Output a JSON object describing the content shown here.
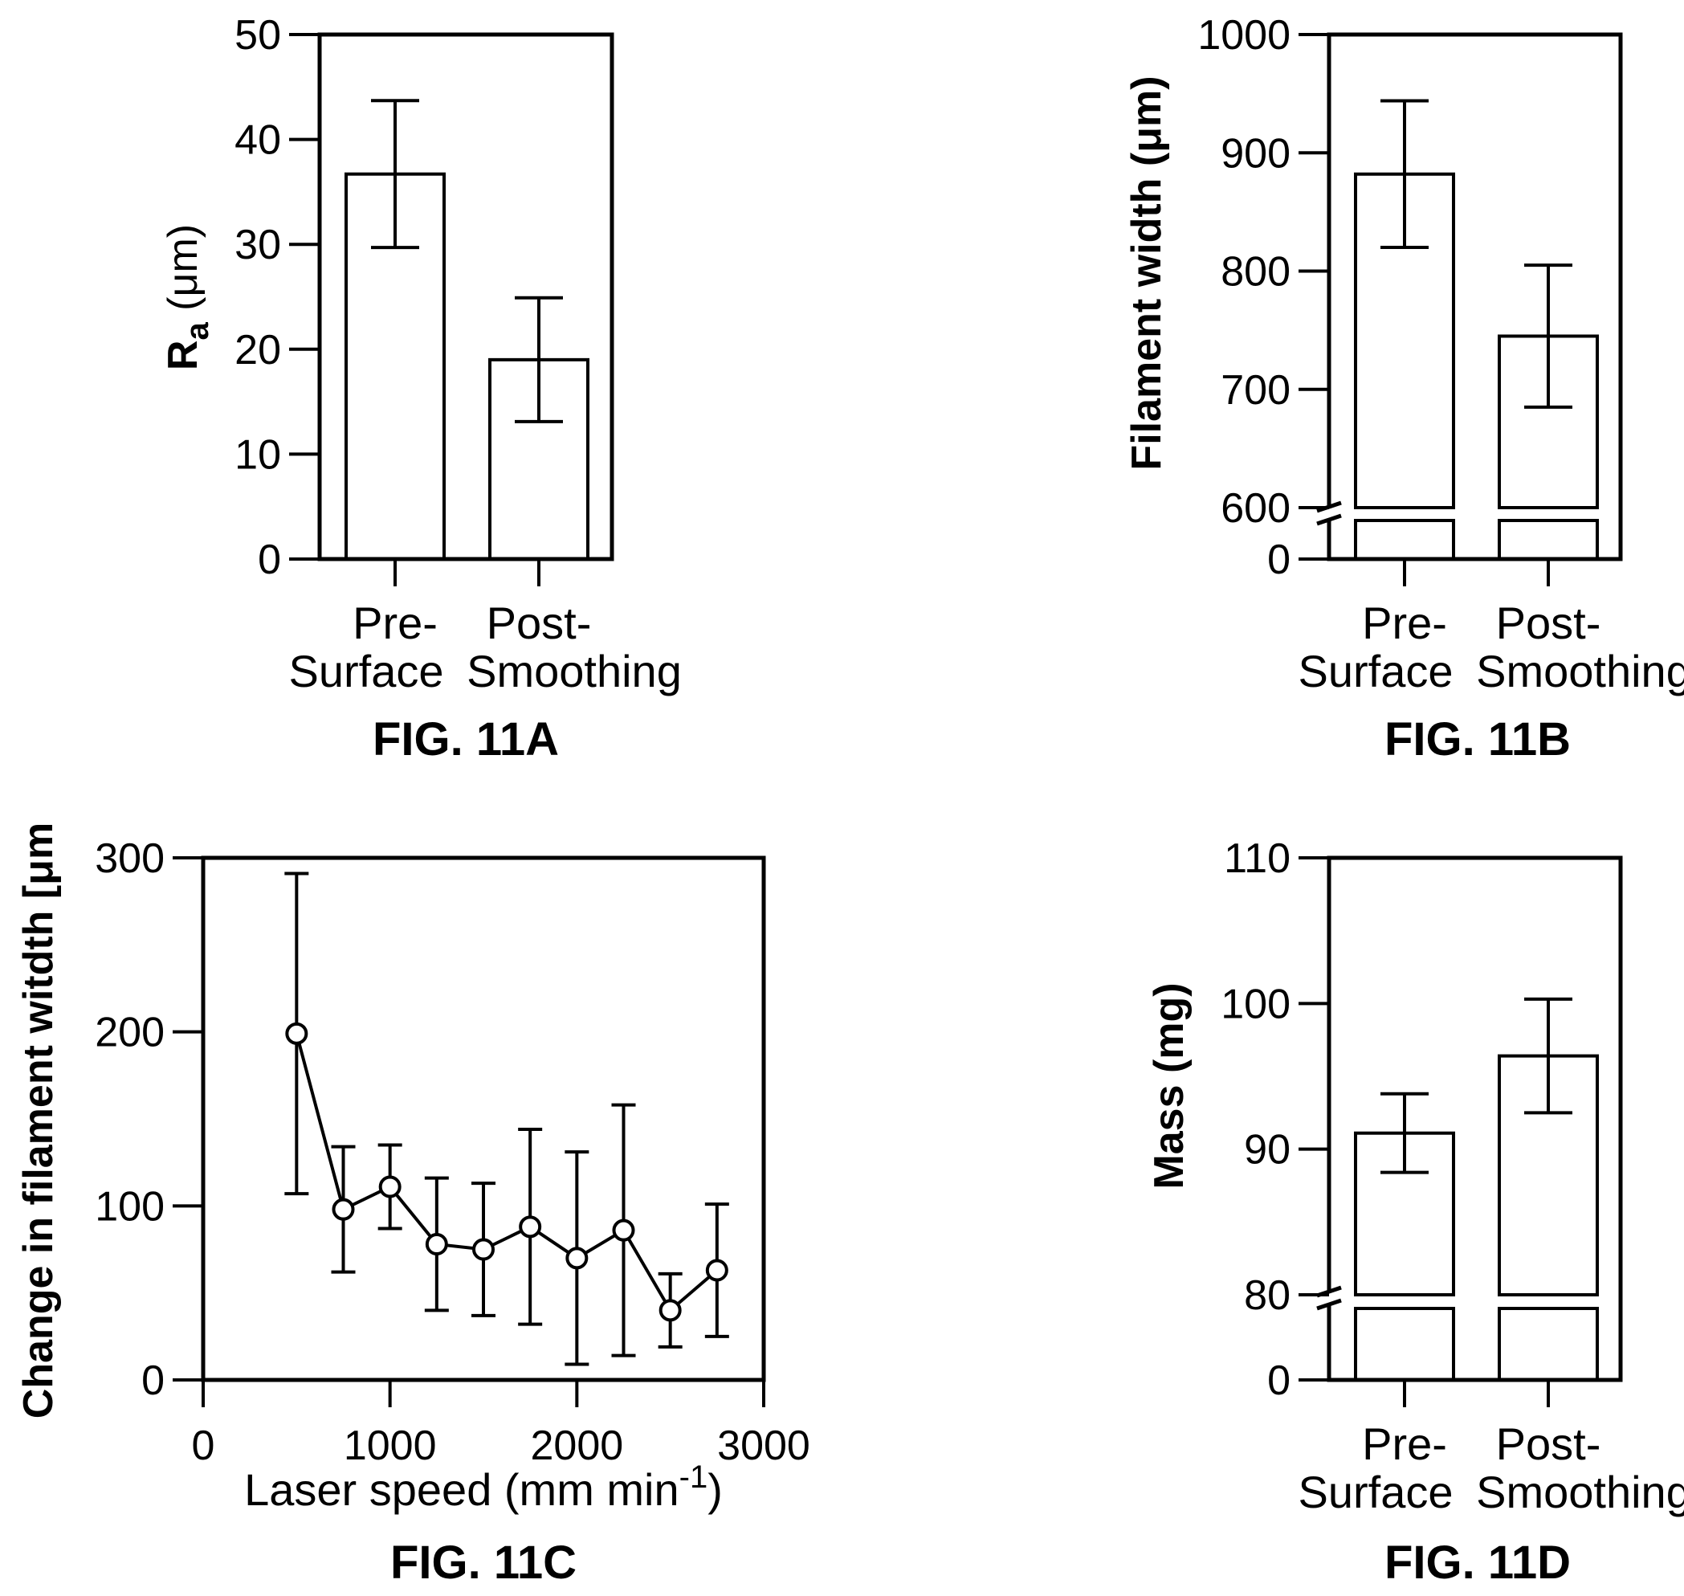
{
  "chart_data": [
    {
      "id": "fig11a",
      "type": "bar",
      "figure_label": "FIG. 11A",
      "ylabel_main": "R",
      "ylabel_sub": "a",
      "ylabel_unit": " (μm)",
      "categories": [
        "Pre-",
        "Post-"
      ],
      "x_group_labels": [
        "Surface",
        "Smoothing"
      ],
      "values": [
        36.7,
        19.0
      ],
      "errors": [
        7.0,
        5.9
      ],
      "ylim": [
        0,
        50
      ],
      "yticks": [
        0,
        10,
        20,
        30,
        40,
        50
      ],
      "grid": false
    },
    {
      "id": "fig11b",
      "type": "bar",
      "figure_label": "FIG. 11B",
      "ylabel": "Filament width (μm)",
      "categories": [
        "Pre-",
        "Post-"
      ],
      "x_group_labels": [
        "Surface",
        "Smoothing"
      ],
      "values": [
        882,
        745
      ],
      "errors": [
        62,
        60
      ],
      "yticks": [
        0,
        600,
        700,
        800,
        900,
        1000
      ],
      "axis_break": [
        0,
        600
      ],
      "ylim": [
        600,
        1000
      ],
      "grid": false
    },
    {
      "id": "fig11c",
      "type": "line",
      "figure_label": "FIG. 11C",
      "ylabel": "Change in filament witdth [μm",
      "xlabel_main": "Laser speed (mm min",
      "xlabel_sup": "-1",
      "xlabel_end": ")",
      "x": [
        500,
        750,
        1000,
        1250,
        1500,
        1750,
        2000,
        2250,
        2500,
        2750
      ],
      "y": [
        199,
        98,
        111,
        78,
        75,
        88,
        70,
        86,
        40,
        63
      ],
      "errors": [
        92,
        36,
        24,
        38,
        38,
        56,
        61,
        72,
        21,
        38
      ],
      "xlim": [
        0,
        3000
      ],
      "ylim": [
        0,
        300
      ],
      "xticks": [
        0,
        1000,
        2000,
        3000
      ],
      "yticks": [
        0,
        100,
        200,
        300
      ],
      "grid": false
    },
    {
      "id": "fig11d",
      "type": "bar",
      "figure_label": "FIG. 11D",
      "ylabel": "Mass (mg)",
      "categories": [
        "Pre-",
        "Post-"
      ],
      "x_group_labels": [
        "Surface",
        "Smoothing"
      ],
      "values": [
        91.1,
        96.4
      ],
      "errors": [
        2.7,
        3.9
      ],
      "yticks": [
        0,
        80,
        90,
        100,
        110
      ],
      "axis_break": [
        0,
        80
      ],
      "ylim": [
        80,
        110
      ],
      "grid": false
    }
  ]
}
